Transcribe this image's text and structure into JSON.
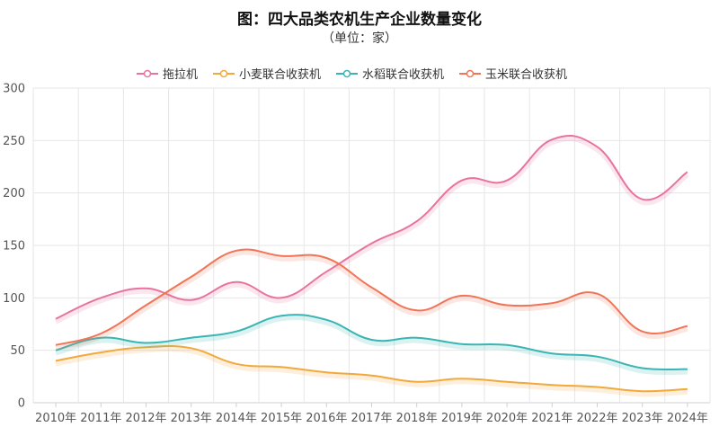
{
  "chart_data": {
    "type": "line",
    "title": "图：四大品类农机生产企业数量变化",
    "subtitle": "（单位：家）",
    "categories": [
      "2010年",
      "2011年",
      "2012年",
      "2013年",
      "2014年",
      "2015年",
      "2016年",
      "2017年",
      "2018年",
      "2019年",
      "2020年",
      "2021年",
      "2022年",
      "2023年",
      "2024年"
    ],
    "ylim": [
      0,
      300
    ],
    "yticks": [
      "0",
      "50",
      "100",
      "150",
      "200",
      "250",
      "300"
    ],
    "grid": true,
    "legend_position": "top",
    "series": [
      {
        "name": "拖拉机",
        "color": "#E8739F",
        "values": [
          80,
          100,
          109,
          98,
          115,
          100,
          125,
          152,
          173,
          212,
          212,
          251,
          244,
          194,
          220
        ]
      },
      {
        "name": "小麦联合收获机",
        "color": "#F2A93B",
        "values": [
          40,
          48,
          53,
          52,
          37,
          34,
          29,
          26,
          20,
          23,
          20,
          17,
          15,
          11,
          13
        ]
      },
      {
        "name": "水稻联合收获机",
        "color": "#3AB5B3",
        "values": [
          50,
          62,
          57,
          62,
          68,
          83,
          79,
          60,
          62,
          56,
          55,
          47,
          44,
          33,
          32
        ]
      },
      {
        "name": "玉米联合收获机",
        "color": "#F07557",
        "values": [
          55,
          66,
          93,
          120,
          145,
          140,
          138,
          110,
          88,
          102,
          93,
          95,
          104,
          68,
          73
        ]
      }
    ]
  }
}
